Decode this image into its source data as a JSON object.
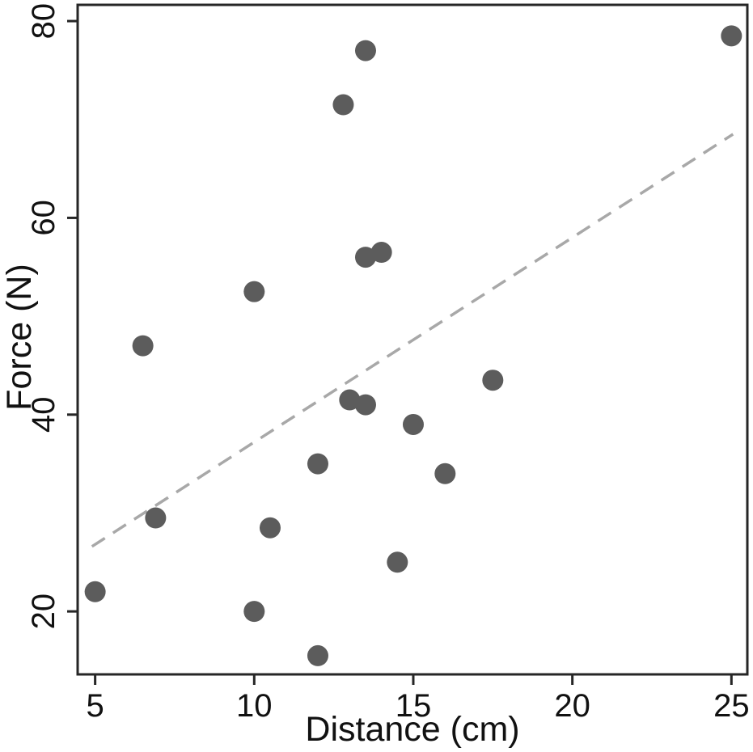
{
  "chart_data": {
    "type": "scatter",
    "title": "",
    "xlabel": "Distance (cm)",
    "ylabel": "Force (N)",
    "x_ticks": [
      5,
      10,
      15,
      20,
      25
    ],
    "y_ticks": [
      20,
      40,
      60,
      80
    ],
    "xlim": [
      4.45,
      25.5
    ],
    "ylim": [
      13.6,
      81.65
    ],
    "grid": false,
    "legend": false,
    "points": [
      [
        5,
        22
      ],
      [
        6.5,
        47
      ],
      [
        6.9,
        29.5
      ],
      [
        10,
        20
      ],
      [
        10,
        52.5
      ],
      [
        10.5,
        28.5
      ],
      [
        12,
        15.5
      ],
      [
        12,
        35
      ],
      [
        12.8,
        71.5
      ],
      [
        13,
        41.5
      ],
      [
        13.5,
        41
      ],
      [
        13.5,
        56
      ],
      [
        13.5,
        77
      ],
      [
        14,
        56.5
      ],
      [
        14.5,
        25
      ],
      [
        15,
        39
      ],
      [
        16,
        34
      ],
      [
        17.5,
        43.5
      ],
      [
        25,
        78.5
      ]
    ],
    "trend_line": {
      "style": "dashed",
      "x1": 4.9,
      "y1": 26.6,
      "x2": 25.05,
      "y2": 68.5
    },
    "colors": {
      "point": "#5c5c5c",
      "trend_line": "#a8a8a8",
      "axis": "#262626",
      "text": "#111111",
      "background": "#ffffff"
    }
  }
}
